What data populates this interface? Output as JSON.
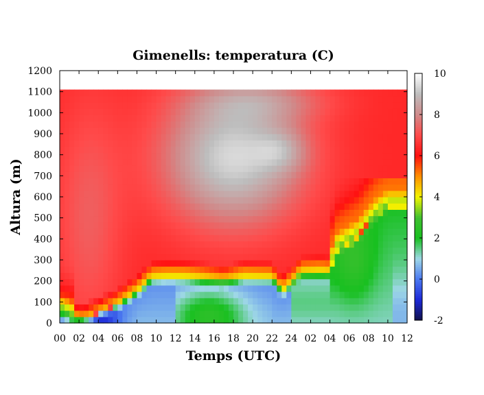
{
  "chart_data": {
    "type": "heatmap",
    "title": "Gimenells: temperatura (C)",
    "xlabel": "Temps (UTC)",
    "ylabel": "Altura (m)",
    "x_ticks": [
      "00",
      "02",
      "04",
      "06",
      "08",
      "10",
      "12",
      "14",
      "16",
      "18",
      "20",
      "22",
      "24",
      "02",
      "04",
      "06",
      "08",
      "10",
      "12"
    ],
    "xlim": [
      0,
      36
    ],
    "ylim": [
      0,
      1200
    ],
    "y_ticks": [
      0,
      100,
      200,
      300,
      400,
      500,
      600,
      700,
      800,
      900,
      1000,
      1100,
      1200
    ],
    "data_top": 1110,
    "colorbar": {
      "range": [
        -2,
        10
      ],
      "ticks": [
        -2,
        0,
        2,
        4,
        6,
        8,
        10
      ],
      "stops": [
        {
          "v": -2,
          "color": "#10104a"
        },
        {
          "v": -1,
          "color": "#1c28d8"
        },
        {
          "v": 0,
          "color": "#4a78f0"
        },
        {
          "v": 1,
          "color": "#9ed7e6"
        },
        {
          "v": 2,
          "color": "#18c020"
        },
        {
          "v": 3,
          "color": "#40c030"
        },
        {
          "v": 4,
          "color": "#f2f400"
        },
        {
          "v": 5,
          "color": "#ff9000"
        },
        {
          "v": 6,
          "color": "#ff1010"
        },
        {
          "v": 7,
          "color": "#ff4a4a"
        },
        {
          "v": 8,
          "color": "#d08a8a"
        },
        {
          "v": 9,
          "color": "#bdbdbd"
        },
        {
          "v": 10,
          "color": "#ffffff"
        }
      ]
    },
    "inversion_top": [
      [
        0,
        60
      ],
      [
        1.5,
        25
      ],
      [
        2.5,
        20
      ],
      [
        4,
        50
      ],
      [
        6,
        90
      ],
      [
        8,
        150
      ],
      [
        9.5,
        215
      ],
      [
        11,
        220
      ],
      [
        13,
        220
      ],
      [
        15,
        210
      ],
      [
        17,
        195
      ],
      [
        19,
        220
      ],
      [
        22,
        215
      ],
      [
        23,
        150
      ],
      [
        24,
        190
      ],
      [
        25,
        240
      ],
      [
        27,
        245
      ],
      [
        28,
        240
      ],
      [
        28.5,
        350
      ],
      [
        29.5,
        380
      ],
      [
        31,
        420
      ],
      [
        32,
        480
      ],
      [
        33,
        530
      ],
      [
        34,
        560
      ],
      [
        36,
        560
      ]
    ]
  }
}
